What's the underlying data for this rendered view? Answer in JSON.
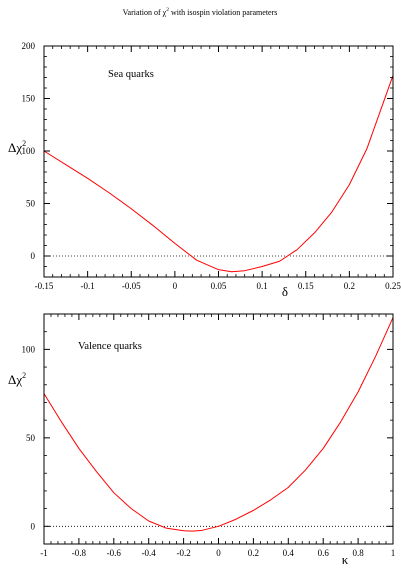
{
  "title": {
    "prefix": "Variation of ",
    "symbol": "χ",
    "superscript": "2",
    "suffix": " with isospin violation parameters"
  },
  "chart_data": [
    {
      "type": "line",
      "annotation": "Sea quarks",
      "xlabel": "δ",
      "ylabel": "Δχ",
      "ylabel_superscript": "2",
      "xlim": [
        -0.15,
        0.25
      ],
      "ylim": [
        -20,
        200
      ],
      "x_ticks": [
        -0.15,
        -0.1,
        -0.05,
        0,
        0.05,
        0.1,
        0.15,
        0.2,
        0.25
      ],
      "x_tick_labels": [
        "-0.15",
        "-0.1",
        "-0.05",
        "0",
        "0.05",
        "0.1",
        "0.15",
        "0.2",
        "0.25"
      ],
      "y_ticks": [
        0,
        50,
        100,
        150,
        200
      ],
      "y_tick_labels": [
        "0",
        "50",
        "100",
        "150",
        "200"
      ],
      "reference_line": {
        "y": 0,
        "style": "dotted",
        "color": "#000000"
      },
      "grid": false,
      "series": [
        {
          "color": "#ff0000",
          "x": [
            -0.15,
            -0.125,
            -0.1,
            -0.075,
            -0.05,
            -0.025,
            0,
            0.025,
            0.05,
            0.065,
            0.08,
            0.1,
            0.12,
            0.14,
            0.16,
            0.18,
            0.2,
            0.22,
            0.25
          ],
          "y": [
            100,
            87,
            74,
            60,
            45,
            29,
            12,
            -4,
            -13,
            -15,
            -14,
            -10,
            -5,
            6,
            22,
            42,
            68,
            102,
            172
          ]
        }
      ]
    },
    {
      "type": "line",
      "annotation": "Valence quarks",
      "xlabel": "κ",
      "ylabel": "Δχ",
      "ylabel_superscript": "2",
      "xlim": [
        -1,
        1
      ],
      "ylim": [
        -10,
        120
      ],
      "x_ticks": [
        -1,
        -0.8,
        -0.6,
        -0.4,
        -0.2,
        0,
        0.2,
        0.4,
        0.6,
        0.8,
        1
      ],
      "x_tick_labels": [
        "-1",
        "-0.8",
        "-0.6",
        "-0.4",
        "-0.2",
        "0",
        "0.2",
        "0.4",
        "0.6",
        "0.8",
        "1"
      ],
      "y_ticks": [
        0,
        50,
        100
      ],
      "y_tick_labels": [
        "0",
        "50",
        "100"
      ],
      "reference_line": {
        "y": 0,
        "style": "dotted",
        "color": "#000000"
      },
      "grid": false,
      "series": [
        {
          "color": "#ff0000",
          "x": [
            -1,
            -0.9,
            -0.8,
            -0.7,
            -0.6,
            -0.5,
            -0.4,
            -0.3,
            -0.2,
            -0.15,
            -0.1,
            0,
            0.1,
            0.2,
            0.3,
            0.4,
            0.5,
            0.6,
            0.7,
            0.8,
            0.9,
            1
          ],
          "y": [
            75,
            59,
            44,
            31,
            19,
            10,
            3,
            -1,
            -2.5,
            -2.7,
            -2.4,
            0,
            4,
            9,
            15,
            22,
            32,
            44,
            59,
            76,
            96,
            118
          ]
        }
      ]
    }
  ]
}
